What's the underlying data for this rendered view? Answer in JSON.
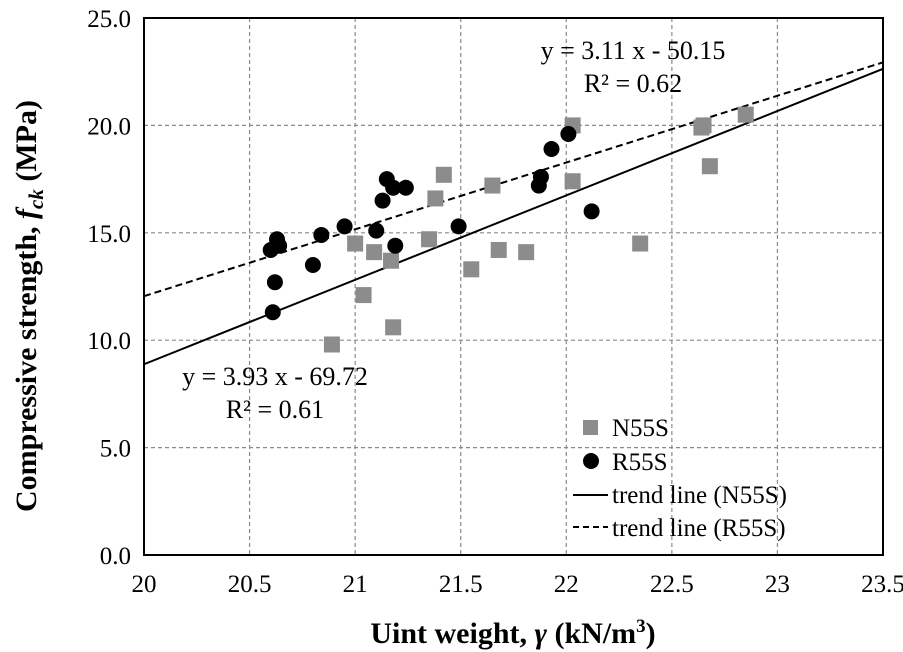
{
  "chart_data": {
    "type": "scatter",
    "xlabel_main": "Uint weight,",
    "xlabel_symbol": "γ",
    "xlabel_unit_prefix": "(kN/m",
    "xlabel_unit_sup": "3",
    "xlabel_unit_suffix": ")",
    "ylabel_main": "Compressive strength,",
    "ylabel_symbol": "f",
    "ylabel_sub": "ck",
    "ylabel_unit": "(MPa)",
    "xlim": [
      20,
      23.5
    ],
    "ylim": [
      0,
      25
    ],
    "xticks": [
      "20",
      "20.5",
      "21",
      "21.5",
      "22",
      "22.5",
      "23",
      "23.5"
    ],
    "yticks": [
      "0.0",
      "5.0",
      "10.0",
      "15.0",
      "20.0",
      "25.0"
    ],
    "grid": true,
    "legend_position": "bottom-right",
    "colors": {
      "n55s": "#8c8c8c",
      "r55s": "#000000",
      "grid": "#8a8a8a"
    },
    "series": [
      {
        "name": "N55S",
        "marker": "square",
        "points": [
          [
            20.89,
            9.8
          ],
          [
            21.0,
            14.5
          ],
          [
            21.04,
            12.1
          ],
          [
            21.09,
            14.1
          ],
          [
            21.17,
            13.7
          ],
          [
            21.18,
            10.6
          ],
          [
            21.35,
            14.7
          ],
          [
            21.38,
            16.6
          ],
          [
            21.42,
            17.7
          ],
          [
            21.55,
            13.3
          ],
          [
            21.65,
            17.2
          ],
          [
            21.68,
            14.2
          ],
          [
            21.81,
            14.1
          ],
          [
            22.03,
            20.0
          ],
          [
            22.03,
            17.4
          ],
          [
            22.35,
            14.5
          ],
          [
            22.64,
            19.9
          ],
          [
            22.65,
            20.0
          ],
          [
            22.68,
            18.1
          ],
          [
            22.85,
            20.5
          ]
        ]
      },
      {
        "name": "R55S",
        "marker": "circle",
        "points": [
          [
            20.6,
            14.2
          ],
          [
            20.61,
            11.3
          ],
          [
            20.62,
            12.7
          ],
          [
            20.63,
            14.7
          ],
          [
            20.64,
            14.4
          ],
          [
            20.8,
            13.5
          ],
          [
            20.84,
            14.9
          ],
          [
            20.95,
            15.3
          ],
          [
            21.1,
            15.1
          ],
          [
            21.13,
            16.5
          ],
          [
            21.15,
            17.5
          ],
          [
            21.18,
            17.1
          ],
          [
            21.19,
            14.4
          ],
          [
            21.24,
            17.1
          ],
          [
            21.49,
            15.3
          ],
          [
            21.87,
            17.2
          ],
          [
            21.88,
            17.6
          ],
          [
            21.93,
            18.9
          ],
          [
            22.01,
            19.6
          ],
          [
            22.12,
            16.0
          ]
        ]
      }
    ],
    "trendlines": [
      {
        "name": "trend line (N55S)",
        "slope": 3.93,
        "intercept": -69.72,
        "style": "solid"
      },
      {
        "name": "trend line (R55S)",
        "slope": 3.11,
        "intercept": -50.15,
        "style": "dashed"
      }
    ],
    "annotations": {
      "r55s_equation": "y = 3.11 x - 50.15",
      "r55s_r2": "R² = 0.62",
      "n55s_equation": "y = 3.93 x - 69.72",
      "n55s_r2": "R² = 0.61"
    }
  }
}
